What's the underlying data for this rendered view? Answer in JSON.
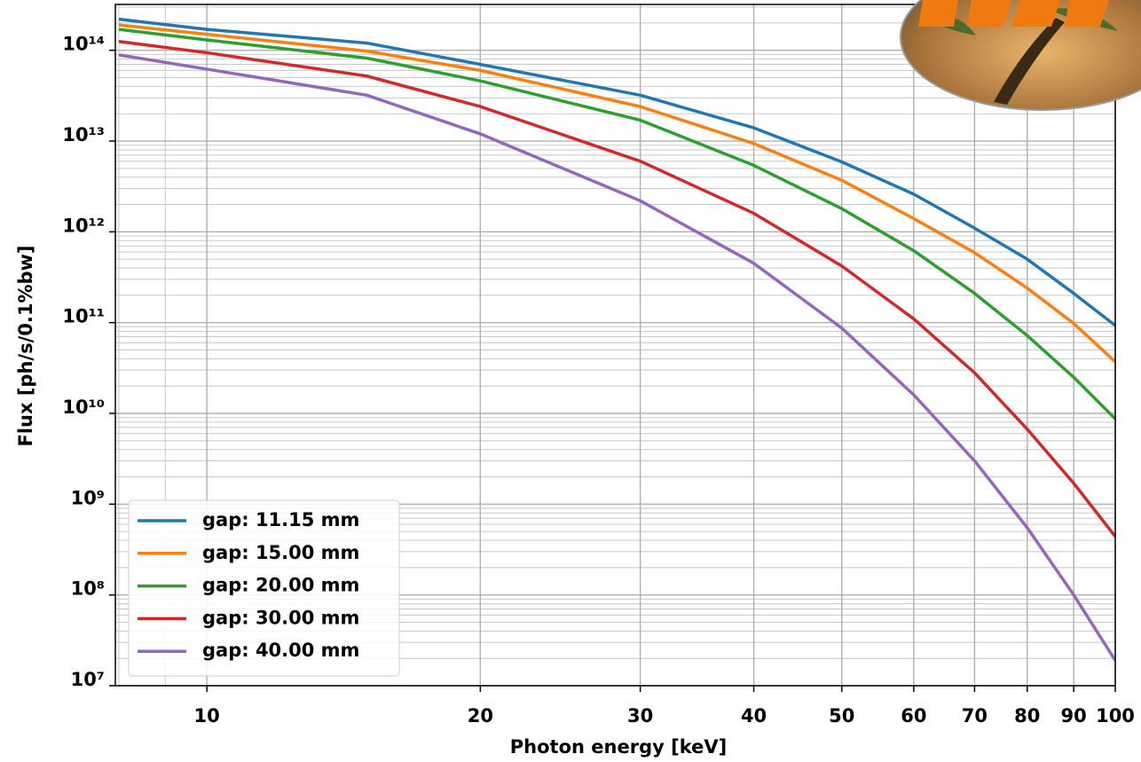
{
  "chart_data": {
    "type": "line",
    "x_label": "Photon energy [keV]",
    "y_label": "Flux [ph/s/0.1%bw]",
    "xscale": "log",
    "yscale": "log",
    "grid": true,
    "legend": "lower left",
    "x": [
      8,
      10,
      15,
      20,
      30,
      40,
      50,
      60,
      70,
      80,
      90,
      100
    ],
    "series": [
      {
        "name": "gap: 11.15 mm",
        "color": "#1f77b4",
        "values": [
          220000000000000.0,
          170000000000000.0,
          120000000000000.0,
          70000000000000.0,
          32000000000000.0,
          14000000000000.0,
          5900000000000.0,
          2600000000000.0,
          1100000000000.0,
          500000000000.0,
          210000000000.0,
          93000000000.0
        ]
      },
      {
        "name": "gap: 15.00 mm",
        "color": "#ff7f0e",
        "values": [
          190000000000000.0,
          150000000000000.0,
          98000000000000.0,
          60000000000000.0,
          24000000000000.0,
          9400000000000.0,
          3700000000000.0,
          1400000000000.0,
          590000000000.0,
          240000000000.0,
          98000000000.0,
          37000000000.0
        ]
      },
      {
        "name": "gap: 20.00 mm",
        "color": "#2ca02c",
        "values": [
          170000000000000.0,
          130000000000000.0,
          82000000000000.0,
          46000000000000.0,
          17000000000000.0,
          5400000000000.0,
          1800000000000.0,
          620000000000.0,
          210000000000.0,
          72000000000.0,
          25000000000.0,
          8700000000.0
        ]
      },
      {
        "name": "gap: 30.00 mm",
        "color": "#d62728",
        "values": [
          125000000000000.0,
          94000000000000.0,
          52000000000000.0,
          24000000000000.0,
          6000000000000.0,
          1600000000000.0,
          420000000000.0,
          110000000000.0,
          28000000000.0,
          6700000000.0,
          1700000000.0,
          440000000.0
        ]
      },
      {
        "name": "gap: 40.00 mm",
        "color": "#9467bd",
        "values": [
          89000000000000.0,
          62000000000000.0,
          32000000000000.0,
          12000000000000.0,
          2200000000000.0,
          450000000000.0,
          87000000000.0,
          16000000000.0,
          3000000000.0,
          550000000.0,
          100000000.0,
          19000000.0
        ]
      }
    ],
    "xlim": [
      7.93,
      100
    ],
    "ylim": [
      10000000.0,
      320000000000000.0
    ],
    "xticks": [
      10,
      20,
      30,
      40,
      50,
      60,
      70,
      80,
      90,
      100
    ],
    "yticks": [
      {
        "value": 10000000.0,
        "label": "10⁷"
      },
      {
        "value": 100000000.0,
        "label": "10⁸"
      },
      {
        "value": 1000000000.0,
        "label": "10⁹"
      },
      {
        "value": 10000000000.0,
        "label": "10¹⁰"
      },
      {
        "value": 100000000000.0,
        "label": "10¹¹"
      },
      {
        "value": 1000000000000.0,
        "label": "10¹²"
      },
      {
        "value": 10000000000000.0,
        "label": "10¹³"
      },
      {
        "value": 100000000000000.0,
        "label": "10¹⁴"
      }
    ]
  }
}
